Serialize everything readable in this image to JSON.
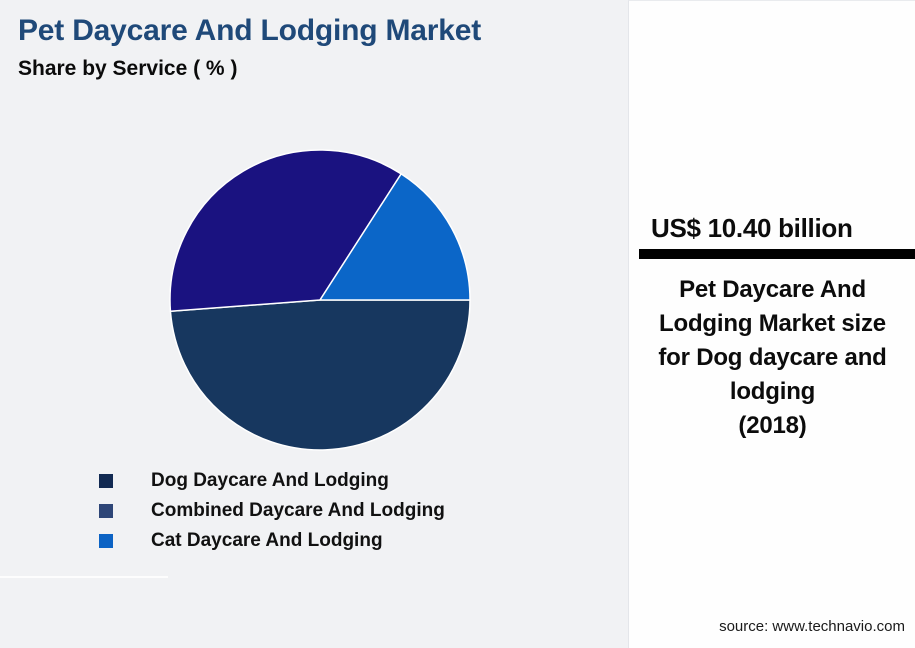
{
  "title": "Pet Daycare And Lodging Market",
  "subtitle": "Share by Service ( % )",
  "colors": {
    "background": "#F1F2F4",
    "panel_background": "#FEFEFE",
    "title": "#1F4979",
    "divider_bar": "#000000",
    "slice_border": "#FFFFFF"
  },
  "chart_data": {
    "type": "pie",
    "title": "Pet Daycare And Lodging Market",
    "subtitle": "Share by Service ( % )",
    "legend_position": "bottom-left",
    "start_angle_deg": 0,
    "direction": "clockwise",
    "slices": [
      {
        "label": "Dog Daycare And Lodging",
        "value_pct": 48.8,
        "color": "#17375F",
        "marker_color": "#122A52"
      },
      {
        "label": "Combined Daycare And Lodging",
        "value_pct": 35.3,
        "color": "#1A1280",
        "marker_color": "#2E4677"
      },
      {
        "label": "Cat Daycare And Lodging",
        "value_pct": 15.9,
        "color": "#0B66C8",
        "marker_color": "#0C63C4"
      }
    ]
  },
  "panel": {
    "value_label": "US$ 10.40 billion",
    "description": "Pet Daycare And Lodging Market size for Dog daycare and lodging",
    "year": "(2018)",
    "source": "source: www.technavio.com"
  }
}
